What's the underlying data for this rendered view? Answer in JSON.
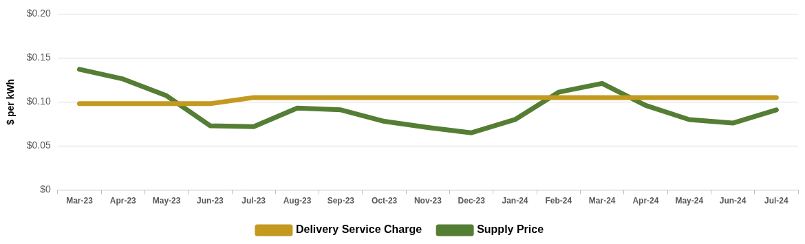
{
  "chart_data": {
    "type": "line",
    "y_label": "$ per kWh",
    "categories": [
      "Mar-23",
      "Apr-23",
      "May-23",
      "Jun-23",
      "Jul-23",
      "Aug-23",
      "Sep-23",
      "Oct-23",
      "Nov-23",
      "Dec-23",
      "Jan-24",
      "Feb-24",
      "Mar-24",
      "Apr-24",
      "May-24",
      "Jun-24",
      "Jul-24"
    ],
    "series": [
      {
        "name": "Delivery Service Charge",
        "color": "#c39a1f",
        "values": [
          0.098,
          0.098,
          0.098,
          0.098,
          0.105,
          0.105,
          0.105,
          0.105,
          0.105,
          0.105,
          0.105,
          0.105,
          0.105,
          0.105,
          0.105,
          0.105,
          0.105
        ]
      },
      {
        "name": "Supply Price",
        "color": "#557e35",
        "values": [
          0.137,
          0.126,
          0.107,
          0.073,
          0.072,
          0.093,
          0.091,
          0.078,
          0.071,
          0.065,
          0.08,
          0.111,
          0.121,
          0.096,
          0.08,
          0.076,
          0.091
        ]
      }
    ],
    "ylim": [
      0,
      0.2
    ],
    "yticks": [
      {
        "value": 0,
        "label": "$0"
      },
      {
        "value": 0.05,
        "label": "$0.05"
      },
      {
        "value": 0.1,
        "label": "$0.10"
      },
      {
        "value": 0.15,
        "label": "$0.15"
      },
      {
        "value": 0.2,
        "label": "$0.20"
      }
    ],
    "grid": true,
    "legend": "bottom"
  }
}
